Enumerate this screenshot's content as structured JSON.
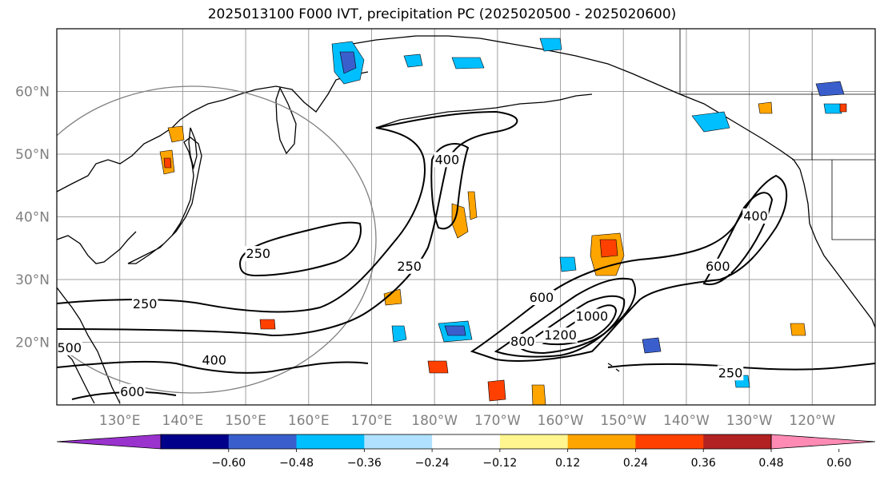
{
  "title": "2025013100 F000 IVT, precipitation PC (2025020500 - 2025020600)",
  "map": {
    "lat_labels": [
      "60°N",
      "50°N",
      "40°N",
      "30°N",
      "20°N"
    ],
    "lat_values": [
      60,
      50,
      40,
      30,
      20
    ],
    "lon_labels": [
      "130°E",
      "140°E",
      "150°E",
      "160°E",
      "170°E",
      "180°W",
      "170°W",
      "160°W",
      "150°W",
      "140°W",
      "130°W",
      "120°W"
    ],
    "lon_values": [
      130,
      140,
      150,
      160,
      170,
      180,
      190,
      200,
      210,
      220,
      230,
      240
    ],
    "lon_range": [
      120,
      250
    ],
    "lat_range": [
      10,
      70
    ],
    "grid": true
  },
  "contour_labels": [
    {
      "text": "250",
      "lon": 152,
      "lat": 34
    },
    {
      "text": "250",
      "lon": 134,
      "lat": 26
    },
    {
      "text": "250",
      "lon": 176,
      "lat": 32
    },
    {
      "text": "400",
      "lon": 182,
      "lat": 49
    },
    {
      "text": "400",
      "lon": 145,
      "lat": 17
    },
    {
      "text": "600",
      "lon": 132,
      "lat": 12
    },
    {
      "text": "500",
      "lon": 122,
      "lat": 19
    },
    {
      "text": "600",
      "lon": 197,
      "lat": 27
    },
    {
      "text": "800",
      "lon": 194,
      "lat": 20
    },
    {
      "text": "1200",
      "lon": 200,
      "lat": 21
    },
    {
      "text": "1000",
      "lon": 205,
      "lat": 24
    },
    {
      "text": "250",
      "lon": 227,
      "lat": 15
    },
    {
      "text": "400",
      "lon": 231,
      "lat": 40
    },
    {
      "text": "600",
      "lon": 225,
      "lat": 32
    }
  ],
  "colorbar": {
    "colors": [
      "#9a32cd",
      "#00008b",
      "#3a5fcd",
      "#00bfff",
      "#b0e2ff",
      "#ffffff",
      "#fff68f",
      "#ffa500",
      "#ff4000",
      "#b22222",
      "#ff8bb4"
    ],
    "tick_labels": [
      "−0.60",
      "−0.48",
      "−0.36",
      "−0.24",
      "−0.12",
      "0.12",
      "0.24",
      "0.36",
      "0.48",
      "0.60"
    ]
  },
  "legend_colors": {
    "positive_fill": "#ffa500",
    "negative_fill": "#00bfff"
  }
}
